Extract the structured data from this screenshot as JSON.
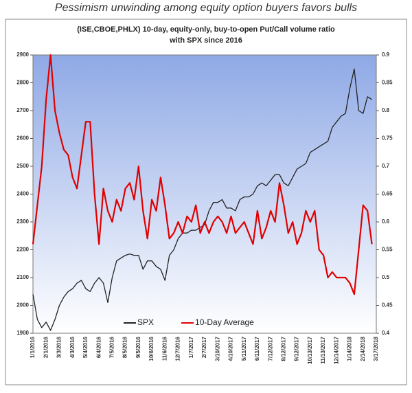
{
  "chart_data": {
    "type": "line",
    "headline": "Pessimism unwinding among equity option buyers favors bulls",
    "title": [
      "(ISE,CBOE,PHLX) 10-day, equity-only, buy-to-open Put/Call volume ratio",
      "with SPX since 2016"
    ],
    "categories": [
      "1/1/2016",
      null,
      null,
      "2/1/2016",
      null,
      null,
      "3/3/2016",
      null,
      null,
      "4/3/2016",
      null,
      null,
      "5/4/2016",
      null,
      null,
      "6/4/2016",
      null,
      null,
      "7/5/2016",
      null,
      null,
      "8/5/2016",
      null,
      null,
      "9/5/2016",
      null,
      null,
      "10/6/2016",
      null,
      null,
      "11/6/2016",
      null,
      null,
      "12/7/2016",
      null,
      null,
      "1/7/2017",
      null,
      null,
      "2/7/2017",
      null,
      null,
      "3/10/2017",
      null,
      null,
      "4/10/2017",
      null,
      null,
      "5/11/2017",
      null,
      null,
      "6/11/2017",
      null,
      null,
      "7/12/2017",
      null,
      null,
      "8/12/2017",
      null,
      null,
      "9/12/2017",
      null,
      null,
      "10/13/2017",
      null,
      null,
      "11/13/2017",
      null,
      null,
      "12/14/2017",
      null,
      null,
      "1/14/2018",
      null,
      null,
      "2/14/2018",
      null,
      null,
      "3/17/2018"
    ],
    "series": [
      {
        "name": "SPX",
        "color": "#222222",
        "axis": "y",
        "values": [
          2040,
          1950,
          1920,
          1940,
          1910,
          1950,
          2000,
          2030,
          2050,
          2060,
          2080,
          2090,
          2060,
          2050,
          2080,
          2100,
          2080,
          2010,
          2100,
          2160,
          2170,
          2180,
          2185,
          2180,
          2180,
          2130,
          2160,
          2160,
          2140,
          2130,
          2090,
          2180,
          2200,
          2240,
          2260,
          2260,
          2270,
          2270,
          2280,
          2290,
          2340,
          2370,
          2370,
          2380,
          2350,
          2350,
          2340,
          2380,
          2390,
          2390,
          2400,
          2430,
          2440,
          2430,
          2450,
          2470,
          2470,
          2440,
          2430,
          2460,
          2490,
          2500,
          2510,
          2550,
          2560,
          2570,
          2580,
          2590,
          2640,
          2660,
          2680,
          2690,
          2780,
          2850,
          2700,
          2690,
          2750,
          2740,
          null
        ]
      },
      {
        "name": "10-Day Average",
        "color": "#e00000",
        "axis": "y2",
        "values": [
          0.56,
          0.63,
          0.7,
          0.82,
          0.9,
          0.8,
          0.76,
          0.73,
          0.72,
          0.68,
          0.66,
          0.72,
          0.78,
          0.78,
          0.65,
          0.56,
          0.66,
          0.62,
          0.6,
          0.64,
          0.62,
          0.66,
          0.67,
          0.64,
          0.7,
          0.62,
          0.57,
          0.64,
          0.62,
          0.68,
          0.63,
          0.57,
          0.58,
          0.6,
          0.58,
          0.61,
          0.6,
          0.63,
          0.58,
          0.6,
          0.58,
          0.6,
          0.61,
          0.6,
          0.58,
          0.61,
          0.58,
          0.59,
          0.6,
          0.58,
          0.56,
          0.62,
          0.57,
          0.59,
          0.62,
          0.6,
          0.67,
          0.63,
          0.58,
          0.6,
          0.56,
          0.58,
          0.62,
          0.6,
          0.62,
          0.55,
          0.54,
          0.5,
          0.51,
          0.5,
          0.5,
          0.5,
          0.49,
          0.47,
          0.55,
          0.63,
          0.62,
          0.56,
          null
        ]
      }
    ],
    "ylim": [
      1900,
      2900
    ],
    "yticks": [
      1900,
      2000,
      2100,
      2200,
      2300,
      2400,
      2500,
      2600,
      2700,
      2800,
      2900
    ],
    "y2lim": [
      0.4,
      0.9
    ],
    "y2ticks": [
      0.4,
      0.45,
      0.5,
      0.55,
      0.6,
      0.65,
      0.7,
      0.75,
      0.8,
      0.85,
      0.9
    ],
    "legend": "bottom"
  }
}
